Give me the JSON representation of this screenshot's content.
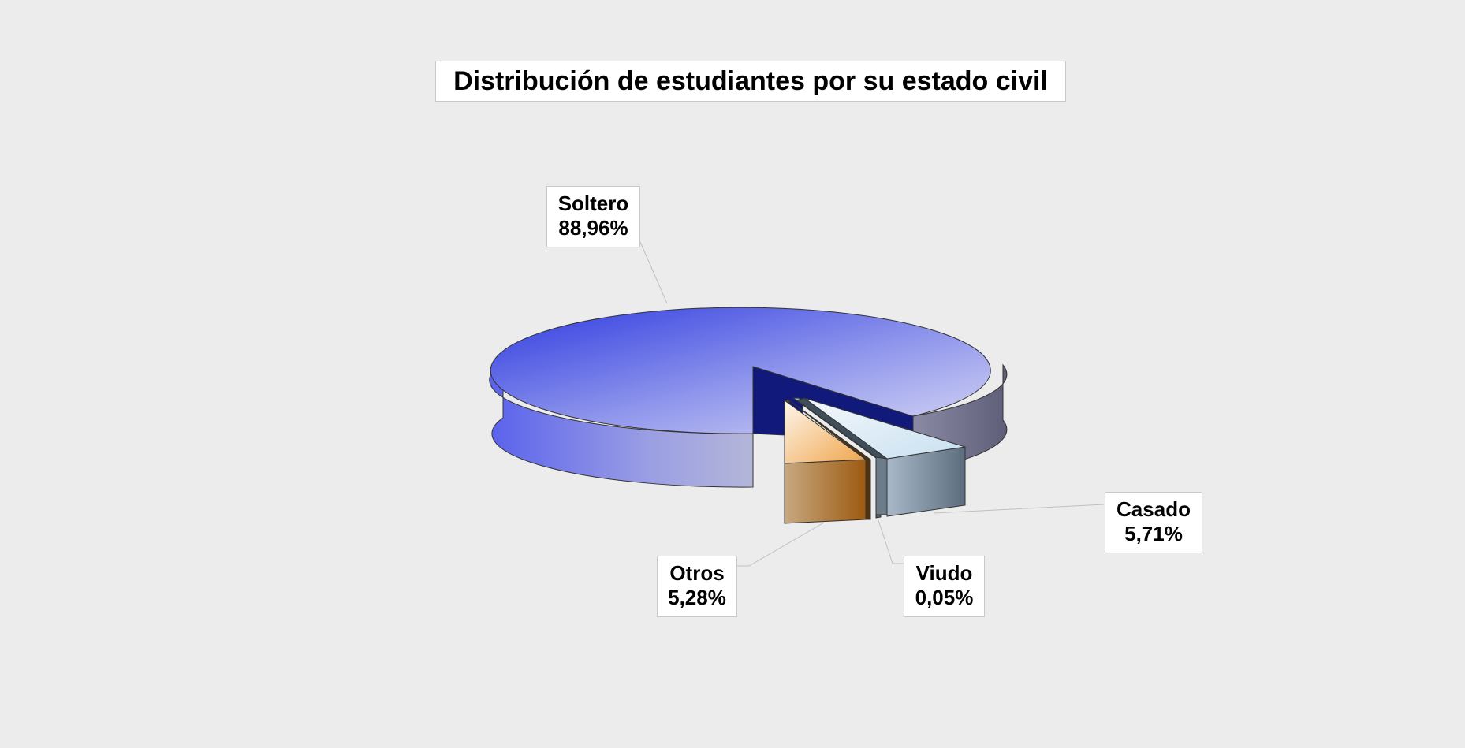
{
  "chart_data": {
    "type": "pie",
    "title": "Distribución de estudiantes por su estado civil",
    "categories": [
      "Soltero",
      "Viudo",
      "Casado",
      "Otros"
    ],
    "values": [
      88.96,
      0.05,
      5.71,
      5.28
    ],
    "value_labels": [
      "88,96%",
      "0,05%",
      "5,71%",
      "5,28%"
    ],
    "style": "3d-exploded",
    "legend": "none",
    "colors": {
      "Soltero": "#4a52e0",
      "Casado": "#7a8c9c",
      "Viudo": "#5a6a78",
      "Otros": "#e0a050",
      "background": "#ececec",
      "leader_line": "#c0c0c0"
    }
  }
}
